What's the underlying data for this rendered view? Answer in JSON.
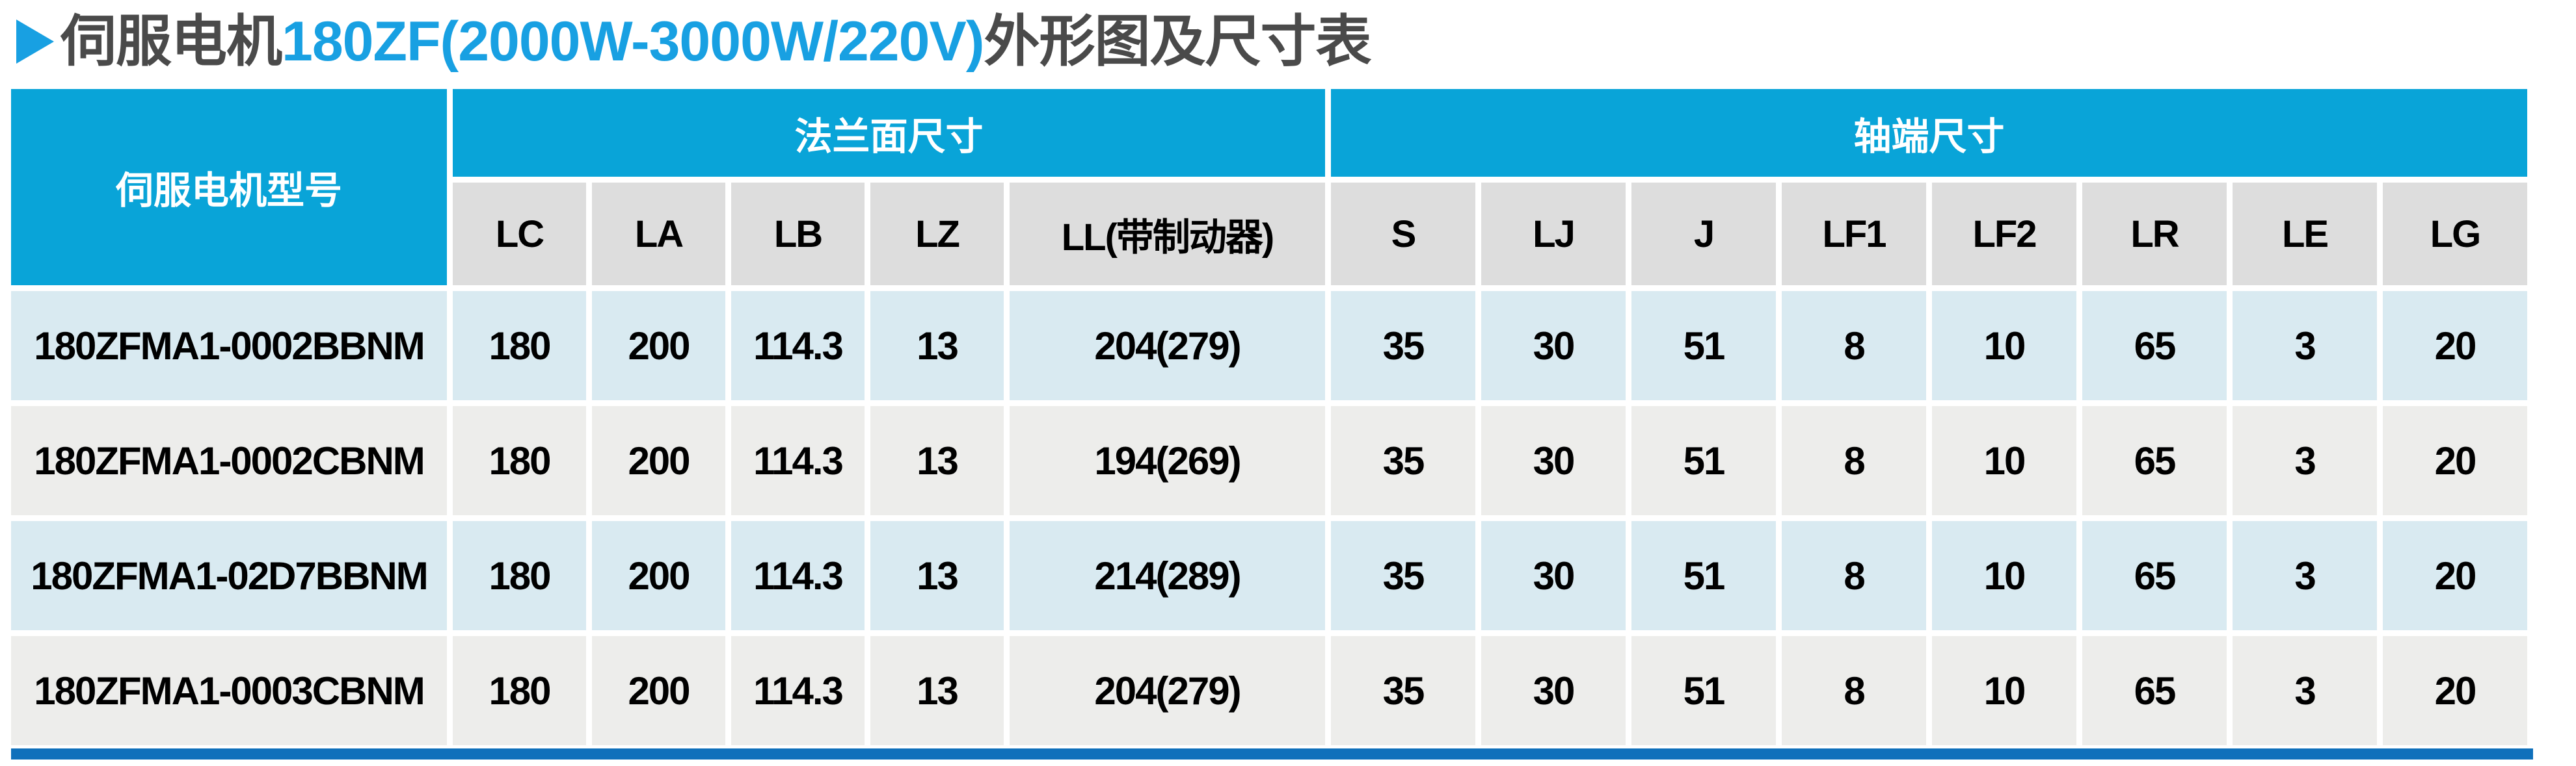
{
  "title": {
    "marker_icon": "play-triangle-icon",
    "prefix": "伺服电机",
    "highlight": "180ZF(2000W-3000W/220V)",
    "suffix": "外形图及尺寸表"
  },
  "colors": {
    "header_blue": "#09a4d8",
    "subheader_gray": "#dddddd",
    "row_light_blue": "#d9eaf1",
    "row_light_gray": "#ededeb",
    "bottom_bar_blue": "#0f70bb",
    "title_text_gray": "#4a4a4a",
    "title_highlight_blue": "#18a0e2"
  },
  "table": {
    "model_header": "伺服电机型号",
    "group_headers": [
      {
        "label": "法兰面尺寸",
        "span": 5
      },
      {
        "label": "轴端尺寸",
        "span": 8
      }
    ],
    "sub_headers": [
      "LC",
      "LA",
      "LB",
      "LZ",
      "LL(带制动器)",
      "S",
      "LJ",
      "J",
      "LF1",
      "LF2",
      "LR",
      "LE",
      "LG"
    ],
    "rows": [
      {
        "model": "180ZFMA1-0002BBNM",
        "values": [
          "180",
          "200",
          "114.3",
          "13",
          "204(279)",
          "35",
          "30",
          "51",
          "8",
          "10",
          "65",
          "3",
          "20"
        ]
      },
      {
        "model": "180ZFMA1-0002CBNM",
        "values": [
          "180",
          "200",
          "114.3",
          "13",
          "194(269)",
          "35",
          "30",
          "51",
          "8",
          "10",
          "65",
          "3",
          "20"
        ]
      },
      {
        "model": "180ZFMA1-02D7BBNM",
        "values": [
          "180",
          "200",
          "114.3",
          "13",
          "214(289)",
          "35",
          "30",
          "51",
          "8",
          "10",
          "65",
          "3",
          "20"
        ]
      },
      {
        "model": "180ZFMA1-0003CBNM",
        "values": [
          "180",
          "200",
          "114.3",
          "13",
          "204(279)",
          "35",
          "30",
          "51",
          "8",
          "10",
          "65",
          "3",
          "20"
        ]
      }
    ]
  }
}
